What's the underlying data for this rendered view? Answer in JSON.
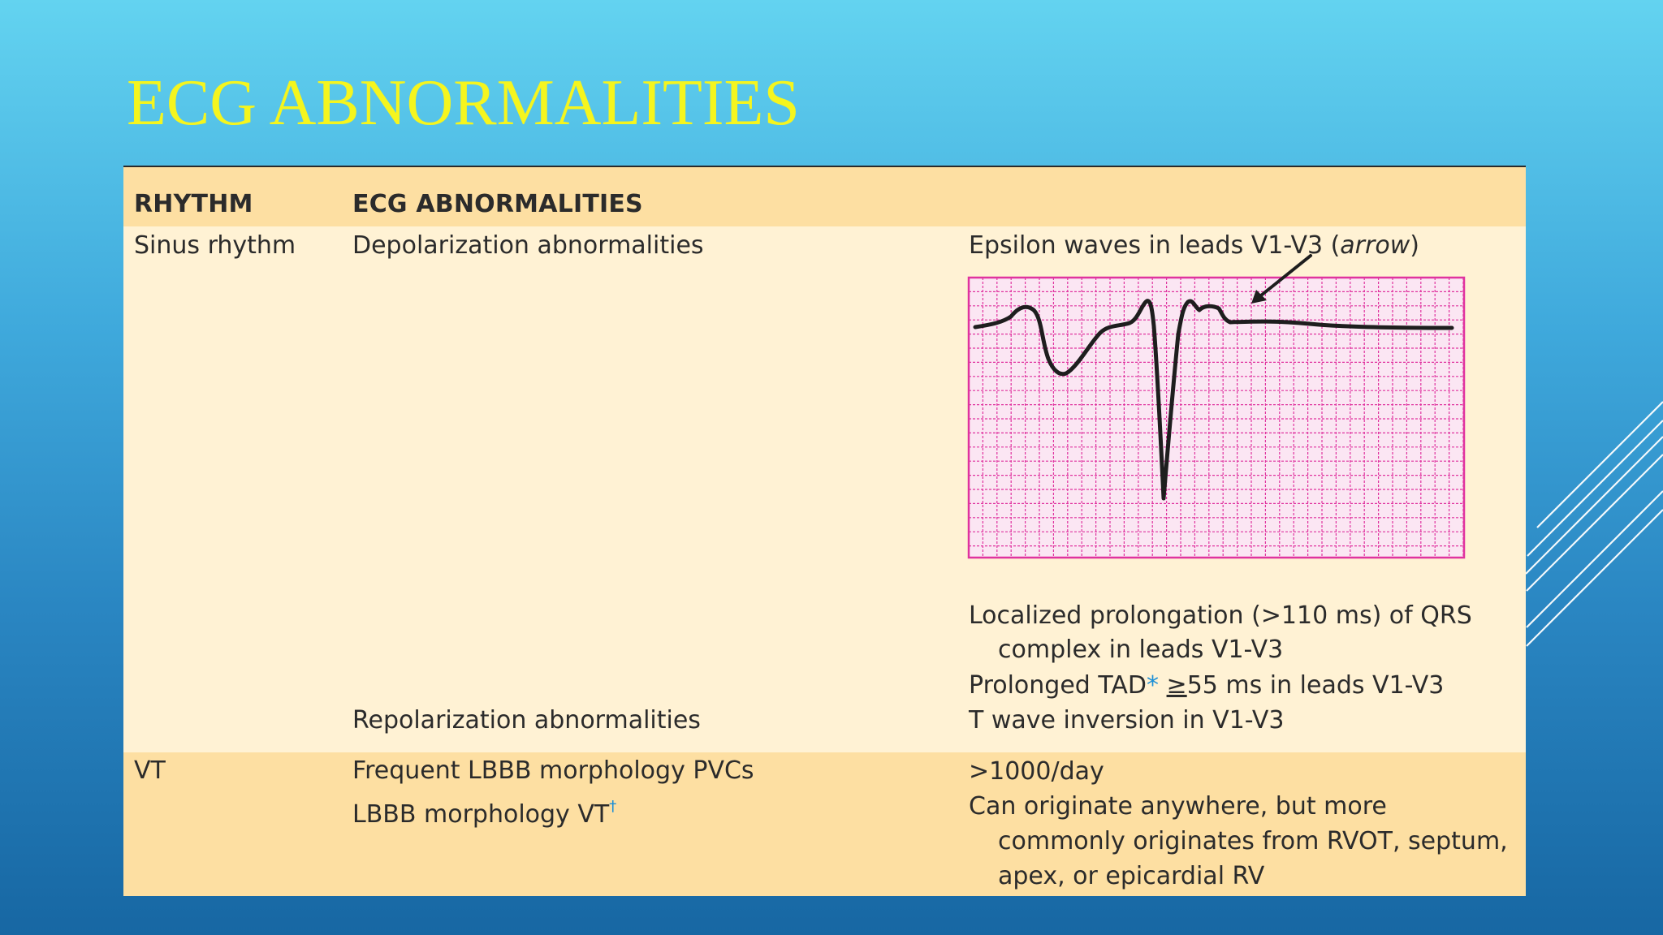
{
  "slide": {
    "title": "ECG ABNORMALITIES"
  },
  "table": {
    "headers": {
      "rhythm": "RHYTHM",
      "abnormalities": "ECG ABNORMALITIES"
    },
    "sinus": {
      "rhythm": "Sinus rhythm",
      "depolarization": "Depolarization abnormalities",
      "epsilon_text": "Epsilon waves in leads V1-V3 (",
      "epsilon_italic": "arrow",
      "epsilon_close": ")",
      "localized_line1": "Localized prolongation (>110 ms) of QRS",
      "localized_line2": "complex in leads V1-V3",
      "tad_prefix": "Prolonged TAD",
      "tad_star": "*",
      "tad_ge": "≥",
      "tad_suffix": "55 ms in leads V1-V3",
      "repolarization": "Repolarization abnormalities",
      "t_wave": "T wave inversion in V1-V3"
    },
    "vt": {
      "rhythm": "VT",
      "frequent": "Frequent LBBB morphology PVCs",
      "lbbb_vt": "LBBB morphology VT",
      "dagger": "†",
      "per_day": ">1000/day",
      "origin_line1": "Can originate anywhere, but more",
      "origin_line2": "commonly originates from RVOT, septum,",
      "origin_line3": "apex, or epicardial RV"
    }
  },
  "colors": {
    "title": "#f5f51e",
    "header_band": "#fddfa2",
    "body_band": "#fff2d4",
    "ecg_grid": "#e0339f",
    "ecg_trace": "#1e1e1e",
    "footnote_marker": "#1b8fd6"
  }
}
